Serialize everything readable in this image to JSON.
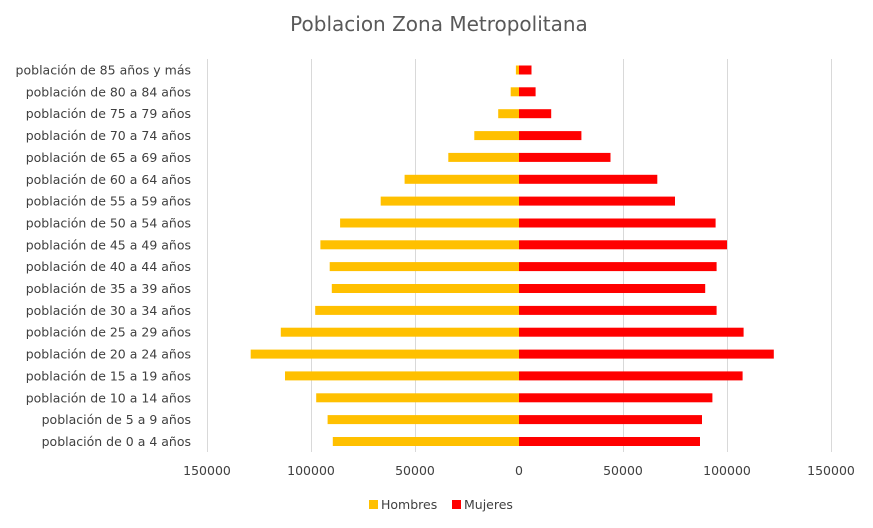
{
  "chart_data": {
    "type": "bar",
    "orientation": "horizontal",
    "title": "Poblacion Zona Metropolitana",
    "categories": [
      "población  de 85 años y más",
      "población  de 80 a 84 años",
      "población  de 75 a 79 años",
      "población  de 70 a 74 años",
      "población  de 65 a 69 años",
      "población  de 60 a 64 años",
      "población  de 55 a 59 años",
      "población  de 50 a 54 años",
      "población  de 45 a 49 años",
      "población  de 40 a 44 años",
      "población  de 35 a 39 años",
      "población  de 30 a 34 años",
      "población  de 25 a 29 años",
      "población  de 20 a 24 años",
      "población  de 15 a 19 años",
      "población  de 10 a 14 años",
      "población  de 5 a 9 años",
      "población  de 0 a 4 años"
    ],
    "series": [
      {
        "name": "Hombres",
        "color": "#FFC000",
        "values": [
          -1500,
          -4000,
          -10000,
          -21500,
          -34000,
          -55000,
          -66500,
          -86000,
          -95500,
          -91000,
          -90000,
          -98000,
          -114500,
          -129000,
          -112500,
          -97500,
          -92000,
          -89500
        ]
      },
      {
        "name": "Mujeres",
        "color": "#FF0000",
        "values": [
          6000,
          8000,
          15500,
          30000,
          44000,
          66500,
          75000,
          94500,
          100000,
          95000,
          89500,
          95000,
          108000,
          122500,
          107500,
          93000,
          88000,
          87000
        ]
      }
    ],
    "xlim": [
      -150000,
      150000
    ],
    "x_ticks": [
      -150000,
      -100000,
      -50000,
      0,
      50000,
      100000,
      150000
    ],
    "x_tick_labels": [
      "150000",
      "100000",
      "50000",
      "0",
      "50000",
      "100000",
      "150000"
    ],
    "grid": true,
    "legend": "bottom"
  }
}
